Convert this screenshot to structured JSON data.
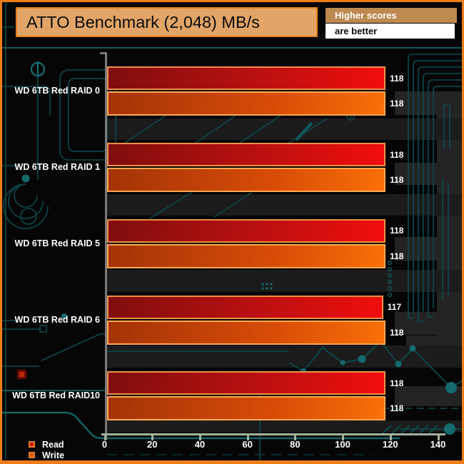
{
  "header": {
    "title": "ATTO Benchmark (2,048) MB/s",
    "note_line1": "Higher scores",
    "note_line2": "are better"
  },
  "chart_data": {
    "type": "bar",
    "orientation": "horizontal",
    "title": "ATTO Benchmark (2,048) MB/s",
    "categories": [
      "WD 6TB Red RAID 0",
      "WD 6TB Red RAID 1",
      "WD 6TB Red RAID 5",
      "WD 6TB Red RAID 6",
      "WD 6TB Red RAID10"
    ],
    "series": [
      {
        "name": "Read",
        "values": [
          118,
          118,
          118,
          117,
          118
        ]
      },
      {
        "name": "Write",
        "values": [
          118,
          118,
          118,
          118,
          118
        ]
      }
    ],
    "xlabel": "",
    "ylabel": "",
    "xlim": [
      0,
      140
    ],
    "xticks": [
      0,
      20,
      40,
      60,
      80,
      100,
      120,
      140
    ],
    "unit": "MB/s",
    "grid": false,
    "legend_position": "bottom-left",
    "value_labels_shown": true
  },
  "colors": {
    "frame_orange": "#ee7c17",
    "title_bg": "#e2a567",
    "note_bg": "#bd8a50",
    "note_bottom_bg": "#ffffff",
    "background": "#060606",
    "read_dark": "#7f0e0e",
    "read_bright": "#f20d0d",
    "read_border": "#ef8f46",
    "write_dark": "#a33307",
    "write_bright": "#fa7008",
    "write_border": "#ffa851",
    "circuit_teal": "#135f62",
    "axis_gray": "#7b7b7b",
    "axis_sage": "#a2b29b",
    "label_text": "#ffffff"
  }
}
